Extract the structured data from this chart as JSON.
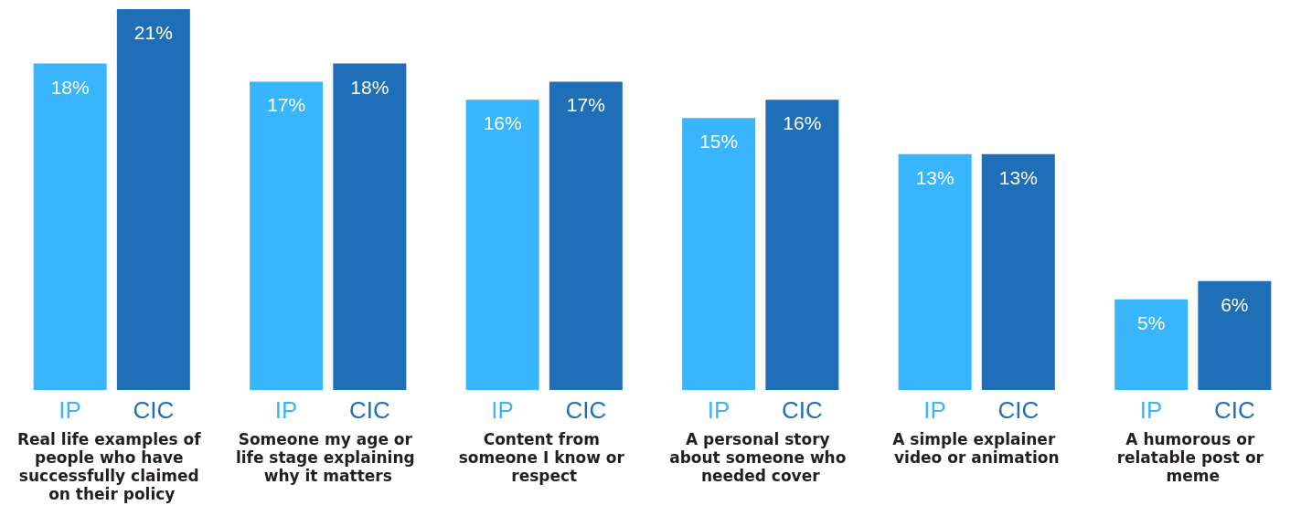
{
  "chart_data": {
    "type": "bar",
    "categories": [
      "Real life examples of people who have successfully claimed on their policy",
      "Someone my age or life stage explaining why it matters",
      "Content from someone I know or respect",
      "A personal story about someone who needed cover",
      "A simple explainer video or animation",
      "A humorous or relatable post or meme"
    ],
    "series": [
      {
        "name": "IP",
        "color": "#38b5fd",
        "values": [
          18,
          17,
          16,
          15,
          13,
          5
        ],
        "value_labels": [
          "18%",
          "17%",
          "16%",
          "15%",
          "13%",
          "5%"
        ]
      },
      {
        "name": "CIC",
        "color": "#1e6fb8",
        "values": [
          21,
          18,
          17,
          16,
          13,
          6
        ],
        "value_labels": [
          "21%",
          "18%",
          "17%",
          "16%",
          "13%",
          "6%"
        ]
      }
    ],
    "tick_labels": "x"
  }
}
